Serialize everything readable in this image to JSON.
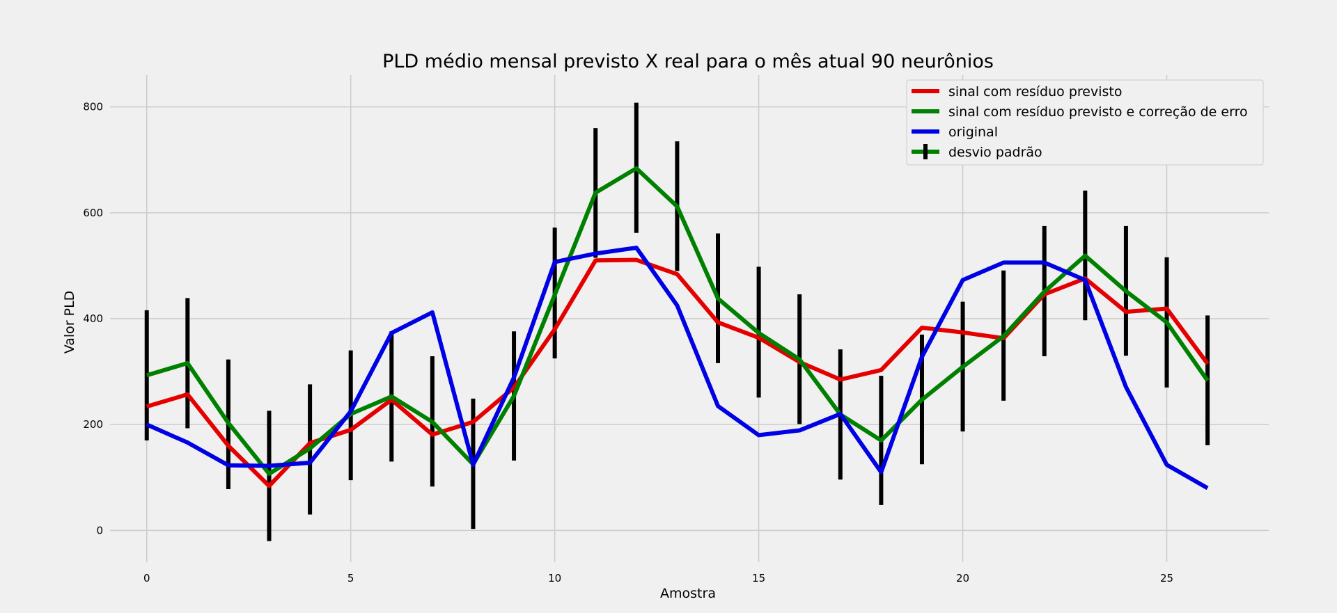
{
  "chart_data": {
    "type": "line",
    "title": "PLD médio mensal previsto X real para o mês atual 90 neurônios",
    "xlabel": "Amostra",
    "ylabel": "Valor PLD",
    "xlim": [
      -0.9,
      27.5
    ],
    "ylim": [
      -60,
      860
    ],
    "xticks": [
      0,
      5,
      10,
      15,
      20,
      25
    ],
    "yticks": [
      0,
      200,
      400,
      600,
      800
    ],
    "grid": true,
    "legend_position": "top-right",
    "x": [
      0,
      1,
      2,
      3,
      4,
      5,
      6,
      7,
      8,
      9,
      10,
      11,
      12,
      13,
      14,
      15,
      16,
      17,
      18,
      19,
      20,
      21,
      22,
      23,
      24,
      25,
      26
    ],
    "series": [
      {
        "name": "sinal com resíduo previsto",
        "color": "#e50000",
        "values": [
          234,
          257,
          160,
          84,
          165,
          190,
          247,
          181,
          205,
          270,
          380,
          510,
          511,
          484,
          393,
          364,
          318,
          285,
          303,
          383,
          374,
          363,
          446,
          476,
          413,
          419,
          315
        ]
      },
      {
        "name": "sinal com resíduo previsto e correção de erro",
        "color": "#008000",
        "values": [
          293,
          316,
          203,
          107,
          155,
          220,
          253,
          205,
          125,
          254,
          445,
          638,
          684,
          612,
          438,
          373,
          323,
          219,
          170,
          247,
          309,
          367,
          451,
          519,
          452,
          393,
          283
        ]
      },
      {
        "name": "original",
        "color": "#0000e5",
        "values": [
          200,
          166,
          123,
          122,
          128,
          225,
          373,
          412,
          124,
          289,
          507,
          523,
          534,
          425,
          235,
          180,
          189,
          220,
          110,
          328,
          473,
          506,
          506,
          473,
          271,
          124,
          80
        ]
      }
    ],
    "error_bars": {
      "name": "desvio padrão",
      "color": "#000000",
      "center_series": "sinal com resíduo previsto e correção de erro",
      "lower": [
        170,
        193,
        78,
        -20,
        30,
        95,
        130,
        83,
        3,
        132,
        325,
        515,
        562,
        490,
        316,
        251,
        201,
        96,
        48,
        125,
        187,
        245,
        329,
        397,
        330,
        270,
        161
      ],
      "upper": [
        416,
        439,
        323,
        226,
        276,
        340,
        376,
        329,
        249,
        376,
        572,
        760,
        808,
        735,
        561,
        498,
        446,
        342,
        292,
        370,
        432,
        491,
        575,
        642,
        575,
        516,
        406
      ]
    }
  }
}
